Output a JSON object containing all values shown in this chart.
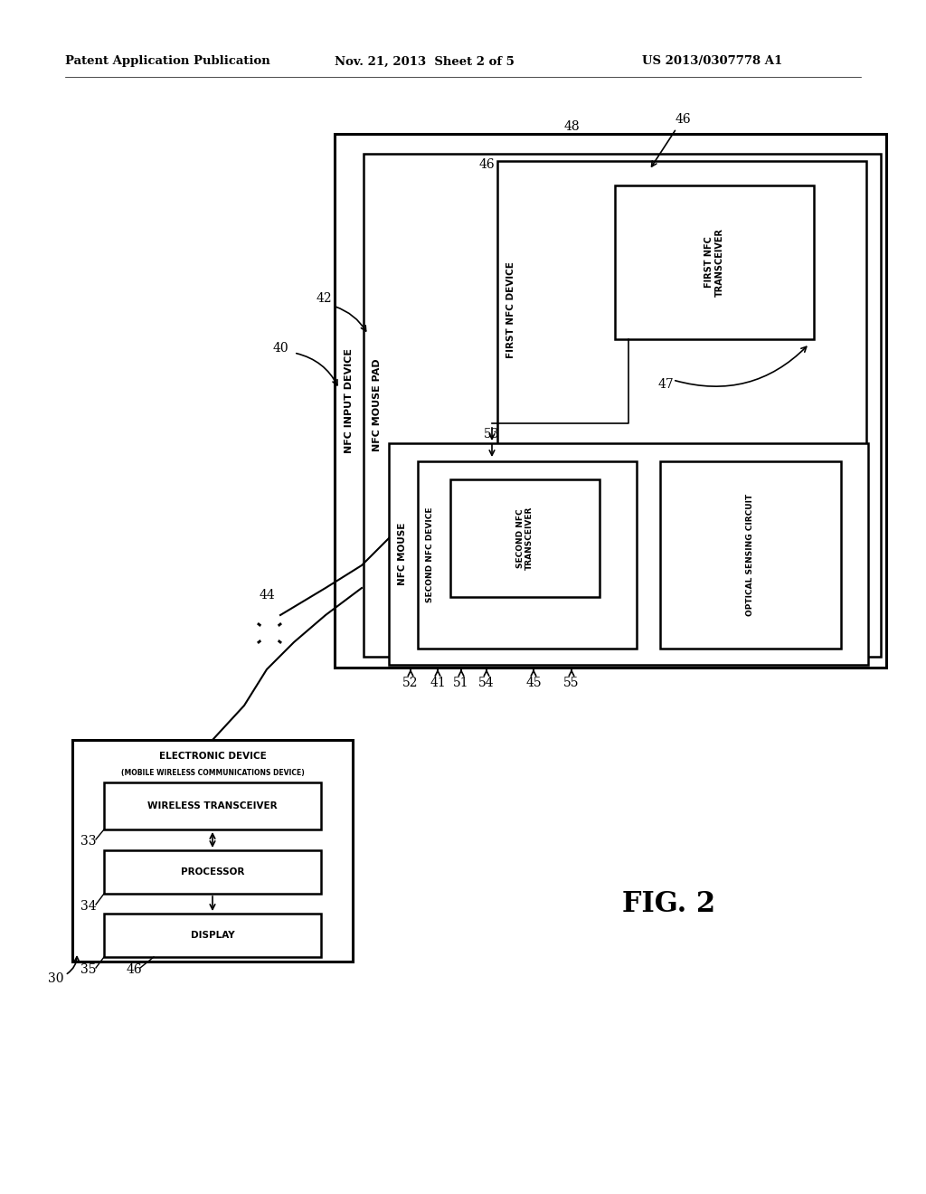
{
  "bg_color": "#ffffff",
  "header_left": "Patent Application Publication",
  "header_mid": "Nov. 21, 2013  Sheet 2 of 5",
  "header_right": "US 2013/0307778 A1",
  "fig_label": "FIG. 2"
}
